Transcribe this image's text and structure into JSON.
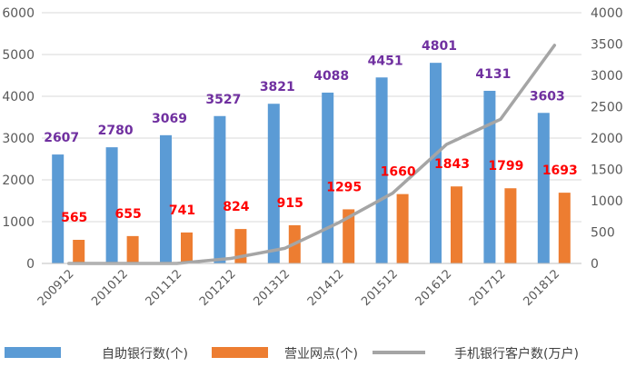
{
  "chart_data": {
    "type": "bar",
    "categories": [
      "200912",
      "201012",
      "201112",
      "201212",
      "201312",
      "201412",
      "201512",
      "201612",
      "201712",
      "201812"
    ],
    "series": [
      {
        "name": "自助银行数(个)",
        "kind": "bar",
        "axis": "left",
        "color": "#5B9BD5",
        "label_color": "#7030A0",
        "values": [
          2607,
          2780,
          3069,
          3527,
          3821,
          4088,
          4451,
          4801,
          4131,
          3603
        ]
      },
      {
        "name": "营业网点(个)",
        "kind": "bar",
        "axis": "left",
        "color": "#ED7D31",
        "label_color": "#FF0000",
        "values": [
          565,
          655,
          741,
          824,
          915,
          1295,
          1660,
          1843,
          1799,
          1693
        ]
      },
      {
        "name": "手机银行客户数(万户)",
        "kind": "line",
        "axis": "right",
        "color": "#A5A5A5",
        "values": [
          0,
          0,
          0,
          80,
          240,
          650,
          1120,
          1900,
          2300,
          3480
        ]
      }
    ],
    "y_left": {
      "min": 0,
      "max": 6000,
      "ticks": [
        0,
        1000,
        2000,
        3000,
        4000,
        5000,
        6000
      ]
    },
    "y_right": {
      "min": 0,
      "max": 4000,
      "ticks": [
        0,
        500,
        1000,
        1500,
        2000,
        2500,
        3000,
        3500,
        4000
      ]
    },
    "grid": true,
    "legend_position": "bottom"
  }
}
